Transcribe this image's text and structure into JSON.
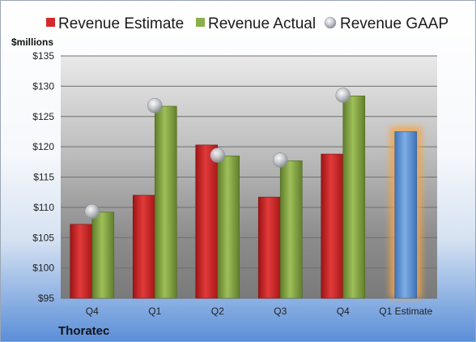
{
  "chart_data": {
    "type": "bar",
    "ylabel": "$millions",
    "company": "Thoratec",
    "ylim": [
      95,
      135
    ],
    "yticks": [
      95,
      100,
      105,
      110,
      115,
      120,
      125,
      130,
      135
    ],
    "yticklabels": [
      "$95",
      "$100",
      "$105",
      "$110",
      "$115",
      "$120",
      "$125",
      "$130",
      "$135"
    ],
    "categories": [
      "Q4",
      "Q1",
      "Q2",
      "Q3",
      "Q4",
      "Q1 Estimate"
    ],
    "legend_position": "top",
    "grid": true,
    "series": [
      {
        "name": "Revenue Estimate",
        "kind": "bar",
        "color": "#d42a2a",
        "values": [
          107.2,
          112.0,
          120.3,
          111.7,
          118.8,
          null
        ]
      },
      {
        "name": "Revenue Actual",
        "kind": "bar",
        "color": "#8cae4c",
        "values": [
          109.2,
          126.7,
          118.5,
          117.7,
          128.4,
          null
        ]
      },
      {
        "name": "Revenue GAAP",
        "kind": "marker",
        "color": "#b8bcc4",
        "values": [
          109.3,
          126.8,
          118.6,
          117.8,
          128.5,
          null
        ]
      },
      {
        "name": "Revenue Estimate (Q1 Estimate)",
        "kind": "bar",
        "color": "#5b92d6",
        "highlight": "#f3a64a",
        "values": [
          null,
          null,
          null,
          null,
          null,
          122.5
        ]
      }
    ]
  }
}
